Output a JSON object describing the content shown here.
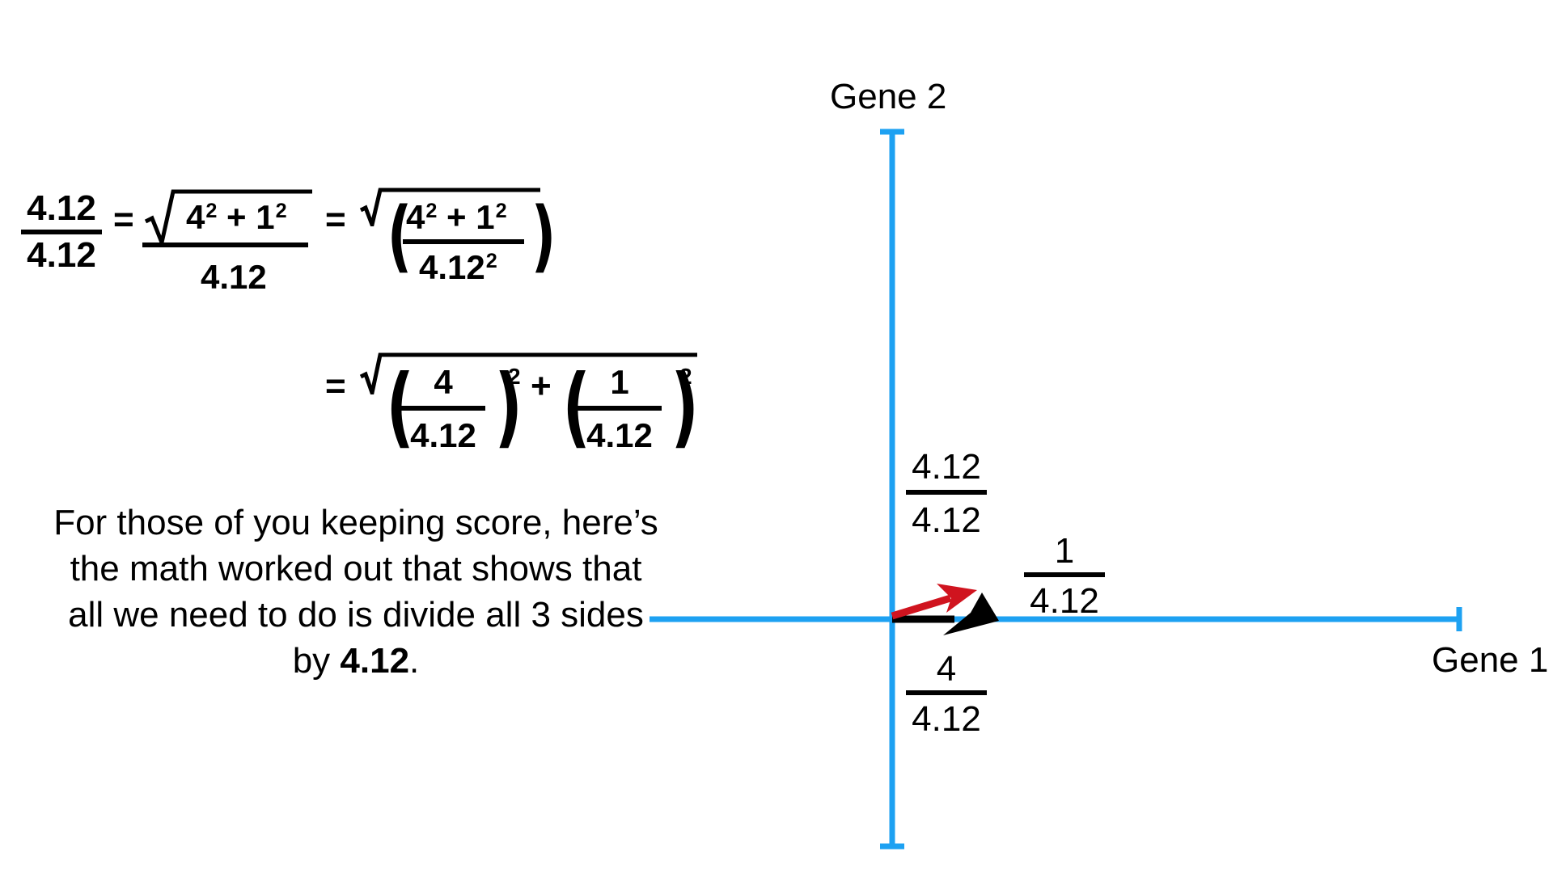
{
  "equations": {
    "lhs": {
      "num": "4.12",
      "den": "4.12"
    },
    "eq1": "=",
    "sqrt_frac": {
      "num_a": "4",
      "num_b": "1",
      "exp": "2",
      "plus": "+",
      "den": "4.12"
    },
    "eq2": "=",
    "sqrt_sq_frac": {
      "num_a": "4",
      "num_b": "1",
      "exp": "2",
      "plus": "+",
      "den": "4.12",
      "den_exp": "2"
    },
    "eq3": "=",
    "sum_of_squares": {
      "term1": {
        "num": "4",
        "den": "4.12"
      },
      "term2": {
        "num": "1",
        "den": "4.12"
      },
      "exp": "2",
      "plus": "+"
    }
  },
  "caption": {
    "text": "For those of you keeping score, here’s the math worked out that shows that all we need to do is divide all 3 sides by ",
    "bold": "4.12",
    "end": "."
  },
  "axes": {
    "x_label": "Gene 1",
    "y_label": "Gene 2",
    "color": "#1da1f2"
  },
  "annotations": {
    "hypotenuse": {
      "num": "4.12",
      "den": "4.12"
    },
    "vertical_side": {
      "num": "1",
      "den": "4.12"
    },
    "horizontal_side": {
      "num": "4",
      "den": "4.12"
    }
  },
  "vectors": {
    "red": "#d0141f",
    "black": "#000000"
  }
}
